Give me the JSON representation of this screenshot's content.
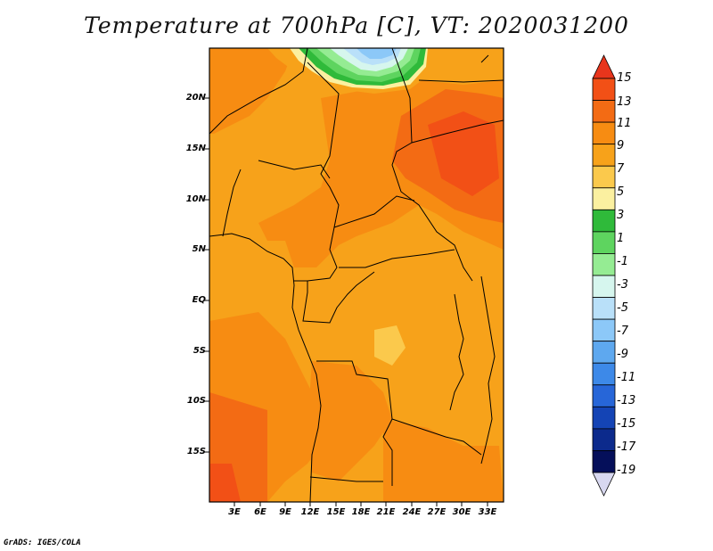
{
  "title": "Temperature at 700hPa [C], VT: 2020031200",
  "footer": "GrADS: IGES/COLA",
  "lat_labels": [
    "20N",
    "15N",
    "10N",
    "5N",
    "EQ",
    "5S",
    "10S",
    "15S"
  ],
  "lon_labels": [
    "3E",
    "6E",
    "9E",
    "12E",
    "15E",
    "18E",
    "21E",
    "24E",
    "27E",
    "30E",
    "33E"
  ],
  "colorbar": {
    "levels": [
      "15",
      "13",
      "11",
      "9",
      "7",
      "5",
      "3",
      "1",
      "-1",
      "-3",
      "-5",
      "-7",
      "-9",
      "-11",
      "-13",
      "-15",
      "-17",
      "-19"
    ],
    "colors": [
      "#e8351c",
      "#f25016",
      "#f36b14",
      "#f78c12",
      "#f7a21a",
      "#fbc94c",
      "#fbf0a0",
      "#2fba3a",
      "#5ed45f",
      "#95ec93",
      "#d6f6ee",
      "#b9e0f9",
      "#8cc8f8",
      "#5ea8ef",
      "#3d89e8",
      "#2766d8",
      "#1444b5",
      "#0c2a8c",
      "#050f5a"
    ]
  }
}
